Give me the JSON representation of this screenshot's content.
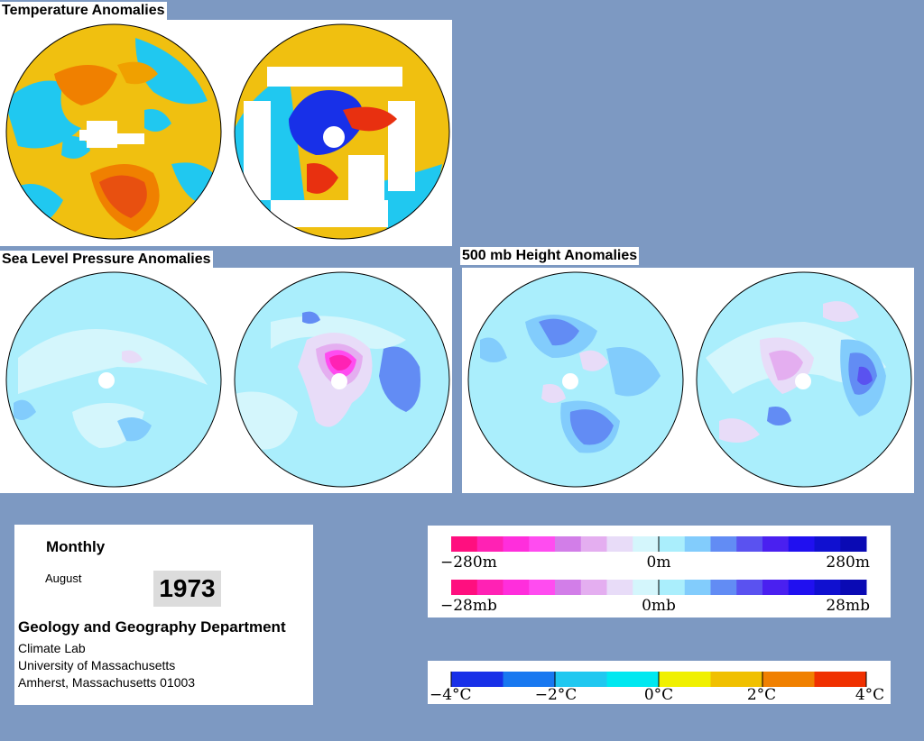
{
  "titles": {
    "temperature": "Temperature Anomalies",
    "slp": "Sea Level Pressure Anomalies",
    "height500": "500 mb Height Anomalies"
  },
  "info": {
    "period": "Monthly",
    "month": "August",
    "year": "1973",
    "department": "Geology and Geography Department",
    "lab": "Climate Lab",
    "university": "University of Massachusetts",
    "address": "Amherst, Massachusetts 01003"
  },
  "scales": {
    "height": {
      "left": "−280m",
      "mid": "0m",
      "right": "280m"
    },
    "pressure": {
      "left": "−28mb",
      "mid": "0mb",
      "right": "28mb"
    },
    "temperature": [
      "−4°C",
      "−2°C",
      "0°C",
      "2°C",
      "4°C"
    ]
  },
  "colors": {
    "background": "#7d99c2",
    "anomaly_scale": [
      "#ff0f7f",
      "#ff22b4",
      "#ff2edc",
      "#ff4cf0",
      "#d27ee8",
      "#e4aef0",
      "#e8dcf8",
      "#d4f6fc",
      "#aaeefc",
      "#82ccfc",
      "#628cf4",
      "#5a52f0",
      "#4a20f0",
      "#2010f0",
      "#1010d0",
      "#0a0ab4"
    ],
    "temperature_scale": [
      "#1830e8",
      "#1878f0",
      "#20c8f0",
      "#00e8f0",
      "#f0f000",
      "#f0c000",
      "#f08000",
      "#f03000"
    ]
  }
}
